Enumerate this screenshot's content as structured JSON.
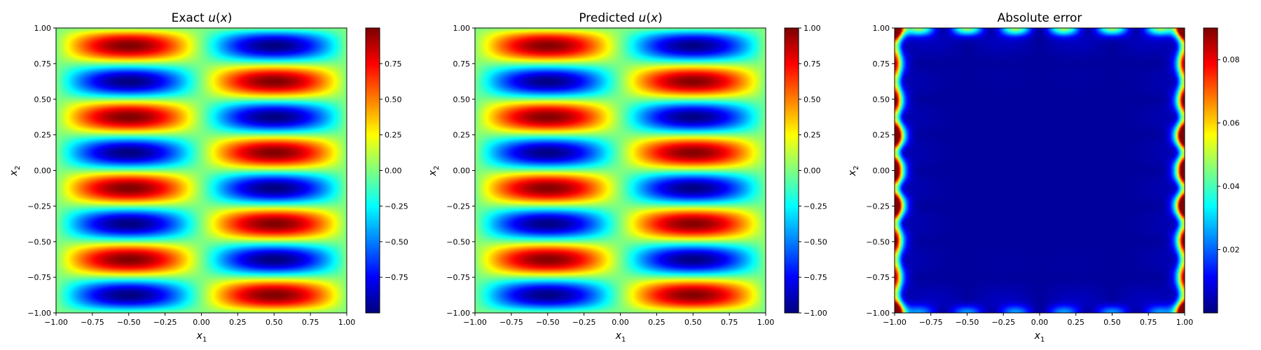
{
  "chart_data": [
    {
      "type": "heatmap",
      "title": "Exact u(x)",
      "xlabel": "x1",
      "ylabel": "x2",
      "xlim": [
        -1,
        1
      ],
      "ylim": [
        -1,
        1
      ],
      "xticks": [
        "−1.00",
        "−0.75",
        "−0.50",
        "−0.25",
        "0.00",
        "0.25",
        "0.50",
        "0.75",
        "1.00"
      ],
      "yticks": [
        "−1.00",
        "−0.75",
        "−0.50",
        "−0.25",
        "0.00",
        "0.25",
        "0.50",
        "0.75",
        "1.00"
      ],
      "colormap": "jet",
      "field": "u(x1, x2) = sin(πx1)·sin(4πx2)",
      "colorbar": {
        "min": -1.0,
        "max": 1.0,
        "ticks": [
          "−0.75",
          "−0.50",
          "−0.25",
          "0.00",
          "0.25",
          "0.50",
          "0.75"
        ],
        "tick_values": [
          -0.75,
          -0.5,
          -0.25,
          0,
          0.25,
          0.5,
          0.75
        ]
      }
    },
    {
      "type": "heatmap",
      "title": "Predicted u(x)",
      "xlabel": "x1",
      "ylabel": "x2",
      "xlim": [
        -1,
        1
      ],
      "ylim": [
        -1,
        1
      ],
      "xticks": [
        "−1.00",
        "−0.75",
        "−0.50",
        "−0.25",
        "0.00",
        "0.25",
        "0.50",
        "0.75",
        "1.00"
      ],
      "yticks": [
        "−1.00",
        "−0.75",
        "−0.50",
        "−0.25",
        "0.00",
        "0.25",
        "0.50",
        "0.75",
        "1.00"
      ],
      "colormap": "jet",
      "field": "approx. sin(πx1)·sin(4πx2)",
      "colorbar": {
        "min": -1.0,
        "max": 1.0,
        "ticks": [
          "−1.00",
          "−0.75",
          "−0.50",
          "−0.25",
          "0.00",
          "0.25",
          "0.50",
          "0.75",
          "1.00"
        ],
        "tick_values": [
          -1,
          -0.75,
          -0.5,
          -0.25,
          0,
          0.25,
          0.5,
          0.75,
          1
        ]
      }
    },
    {
      "type": "heatmap",
      "title": "Absolute error",
      "xlabel": "x1",
      "ylabel": "x2",
      "xlim": [
        -1,
        1
      ],
      "ylim": [
        -1,
        1
      ],
      "xticks": [
        "−1.00",
        "−0.75",
        "−0.50",
        "−0.25",
        "0.00",
        "0.25",
        "0.50",
        "0.75",
        "1.00"
      ],
      "yticks": [
        "−1.00",
        "−0.75",
        "−0.50",
        "−0.25",
        "0.00",
        "0.25",
        "0.50",
        "0.75",
        "1.00"
      ],
      "colormap": "jet",
      "field": "abs error, concentrated near boundary",
      "colorbar": {
        "min": 0.0,
        "max": 0.09,
        "ticks": [
          "0.02",
          "0.04",
          "0.06",
          "0.08"
        ],
        "tick_values": [
          0.02,
          0.04,
          0.06,
          0.08
        ]
      }
    }
  ]
}
